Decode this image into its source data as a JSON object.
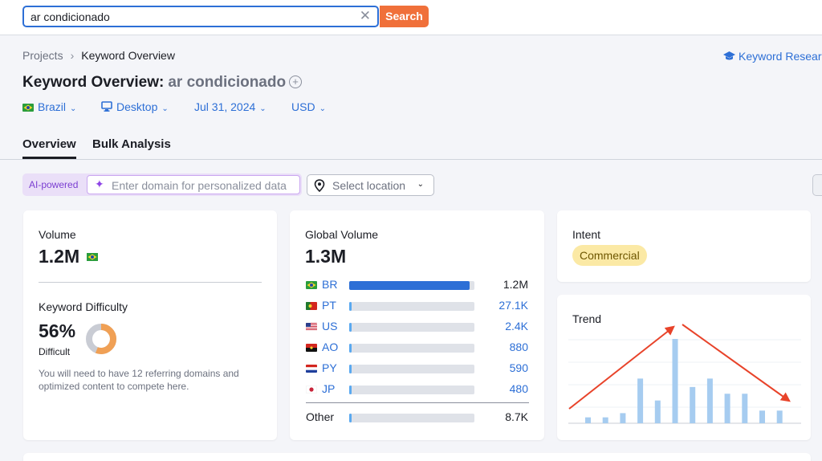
{
  "search": {
    "query": "ar condicionado",
    "button_label": "Search"
  },
  "breadcrumb": {
    "items": [
      "Projects",
      "Keyword Overview"
    ]
  },
  "research_link": "Keyword Resear",
  "page": {
    "title": "Keyword Overview:",
    "keyword": "ar condicionado"
  },
  "filters": {
    "country": "Brazil",
    "device": "Desktop",
    "date": "Jul 31, 2024",
    "currency": "USD"
  },
  "tabs": [
    "Overview",
    "Bulk Analysis"
  ],
  "ai": {
    "label": "AI-powered",
    "placeholder": "Enter domain for personalized data"
  },
  "location": {
    "placeholder": "Select location"
  },
  "volume": {
    "label": "Volume",
    "value": "1.2M"
  },
  "difficulty": {
    "label": "Keyword Difficulty",
    "value": "56%",
    "level": "Difficult",
    "percent": 56,
    "note": "You will need to have 12 referring domains and optimized content to compete here."
  },
  "global_volume": {
    "label": "Global Volume",
    "value": "1.3M",
    "countries": [
      {
        "code": "BR",
        "display": "1.2M",
        "share": 0.96
      },
      {
        "code": "PT",
        "display": "27.1K",
        "share": 0.02
      },
      {
        "code": "US",
        "display": "2.4K",
        "share": 0.02
      },
      {
        "code": "AO",
        "display": "880",
        "share": 0.01
      },
      {
        "code": "PY",
        "display": "590",
        "share": 0.01
      },
      {
        "code": "JP",
        "display": "480",
        "share": 0.01
      }
    ],
    "other": {
      "label": "Other",
      "display": "8.7K",
      "share": 0.01
    }
  },
  "intent": {
    "label": "Intent",
    "value": "Commercial"
  },
  "trend": {
    "label": "Trend",
    "values": [
      0.07,
      0.07,
      0.12,
      0.53,
      0.27,
      1.0,
      0.43,
      0.53,
      0.35,
      0.35,
      0.15,
      0.15
    ]
  },
  "colors": {
    "accent": "#2d6fd6",
    "search_button": "#f0703a",
    "difficulty": "#f0a055",
    "trend_bar": "#a6ccf0",
    "arrow": "#e8432a"
  }
}
